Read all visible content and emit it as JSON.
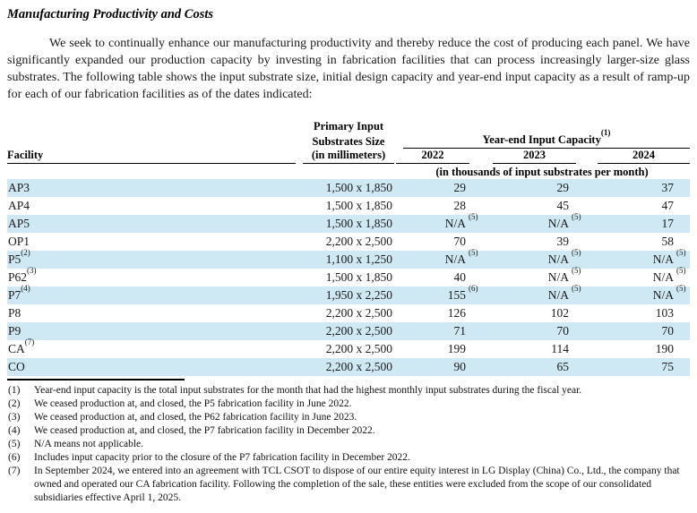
{
  "page": {
    "title": "Manufacturing Productivity and Costs",
    "intro": "We seek to continually enhance our manufacturing productivity and thereby reduce the cost of producing each panel. We have significantly expanded our production capacity by investing in fabrication facilities that can process increasingly larger-size glass substrates. The following table shows the input substrate size, initial design capacity and year-end input capacity as a result of ramp-up for each of our fabrication facilities as of the dates indicated:"
  },
  "colors": {
    "stripe": "#cfe9f4",
    "text": "#1a1a1a",
    "rule": "#000000"
  },
  "table": {
    "header": {
      "facility": "Facility",
      "size_line1": "Primary Input",
      "size_line2": "Substrates Size",
      "size_line3": "(in millimeters)",
      "group": "Year-end Input Capacity",
      "group_sup": "(1)",
      "years": [
        "2022",
        "2023",
        "2024"
      ],
      "units_note": "(in thousands of input substrates per month)"
    },
    "rows": [
      {
        "facility": "AP3",
        "facility_sup": "",
        "size": "1,500 x 1,850",
        "values": [
          {
            "v": "29",
            "sup": ""
          },
          {
            "v": "29",
            "sup": ""
          },
          {
            "v": "37",
            "sup": ""
          }
        ]
      },
      {
        "facility": "AP4",
        "facility_sup": "",
        "size": "1,500 x 1,850",
        "values": [
          {
            "v": "28",
            "sup": ""
          },
          {
            "v": "45",
            "sup": ""
          },
          {
            "v": "47",
            "sup": ""
          }
        ]
      },
      {
        "facility": "AP5",
        "facility_sup": "",
        "size": "1,500 x 1,850",
        "values": [
          {
            "v": "N/A",
            "sup": "(5)"
          },
          {
            "v": "N/A",
            "sup": "(5)"
          },
          {
            "v": "17",
            "sup": ""
          }
        ]
      },
      {
        "facility": "OP1",
        "facility_sup": "",
        "size": "2,200 x 2,500",
        "values": [
          {
            "v": "70",
            "sup": ""
          },
          {
            "v": "39",
            "sup": ""
          },
          {
            "v": "58",
            "sup": ""
          }
        ]
      },
      {
        "facility": "P5",
        "facility_sup": "(2)",
        "size": "1,100 x 1,250",
        "values": [
          {
            "v": "N/A",
            "sup": "(5)"
          },
          {
            "v": "N/A",
            "sup": "(5)"
          },
          {
            "v": "N/A",
            "sup": "(5)"
          }
        ]
      },
      {
        "facility": "P62",
        "facility_sup": "(3)",
        "size": "1,500 x 1,850",
        "values": [
          {
            "v": "40",
            "sup": ""
          },
          {
            "v": "N/A",
            "sup": "(5)"
          },
          {
            "v": "N/A",
            "sup": "(5)"
          }
        ]
      },
      {
        "facility": "P7",
        "facility_sup": "(4)",
        "size": "1,950 x 2,250",
        "values": [
          {
            "v": "155",
            "sup": "(6)"
          },
          {
            "v": "N/A",
            "sup": "(5)"
          },
          {
            "v": "N/A",
            "sup": "(5)"
          }
        ]
      },
      {
        "facility": "P8",
        "facility_sup": "",
        "size": "2,200 x 2,500",
        "values": [
          {
            "v": "126",
            "sup": ""
          },
          {
            "v": "102",
            "sup": ""
          },
          {
            "v": "103",
            "sup": ""
          }
        ]
      },
      {
        "facility": "P9",
        "facility_sup": "",
        "size": "2,200 x 2,500",
        "values": [
          {
            "v": "71",
            "sup": ""
          },
          {
            "v": "70",
            "sup": ""
          },
          {
            "v": "70",
            "sup": ""
          }
        ]
      },
      {
        "facility": "CA",
        "facility_sup": "(7)",
        "size": "2,200 x 2,500",
        "values": [
          {
            "v": "199",
            "sup": ""
          },
          {
            "v": "114",
            "sup": ""
          },
          {
            "v": "190",
            "sup": ""
          }
        ]
      },
      {
        "facility": "CO",
        "facility_sup": "",
        "size": "2,200 x 2,500",
        "values": [
          {
            "v": "90",
            "sup": ""
          },
          {
            "v": "65",
            "sup": ""
          },
          {
            "v": "75",
            "sup": ""
          }
        ]
      }
    ]
  },
  "footnotes": [
    {
      "marker": "(1)",
      "text": "Year-end input capacity is the total input substrates for the month that had the highest monthly input substrates during the fiscal year."
    },
    {
      "marker": "(2)",
      "text": "We ceased production at, and closed, the P5 fabrication facility in June 2022."
    },
    {
      "marker": "(3)",
      "text": "We ceased production at, and closed, the P62 fabrication facility in June 2023."
    },
    {
      "marker": "(4)",
      "text": "We ceased production at, and closed, the P7 fabrication facility in December 2022."
    },
    {
      "marker": "(5)",
      "text": "N/A means not applicable."
    },
    {
      "marker": "(6)",
      "text": "Includes input capacity prior to the closure of the P7 fabrication facility in December 2022."
    },
    {
      "marker": "(7)",
      "text": "In September 2024, we entered into an agreement with TCL CSOT to dispose of our entire equity interest in LG Display (China) Co., Ltd., the company that owned and operated our CA fabrication facility. Following the completion of the sale, these entities were excluded from the scope of our consolidated subsidiaries effective April 1, 2025."
    }
  ]
}
